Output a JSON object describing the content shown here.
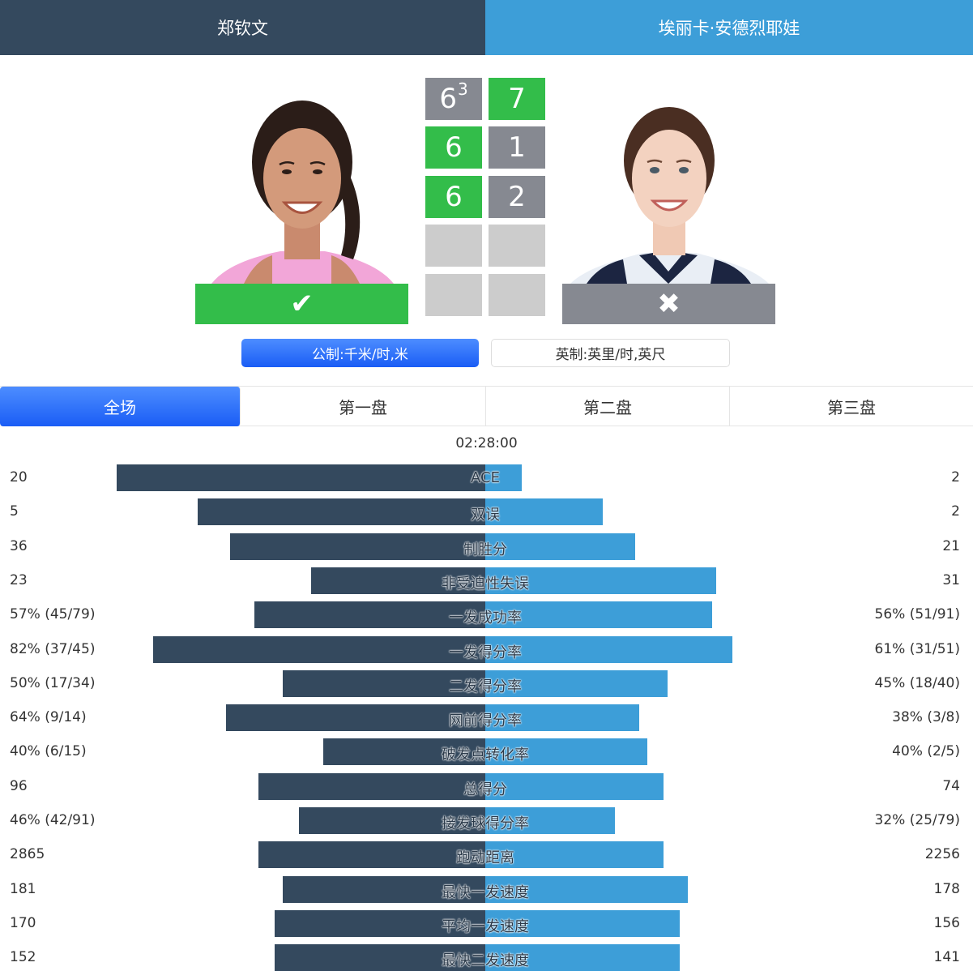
{
  "players": {
    "p1": {
      "name": "郑钦文",
      "result": "✔",
      "result_icon": "check-icon"
    },
    "p2": {
      "name": "埃丽卡·安德烈耶娃",
      "result": "✖",
      "result_icon": "cross-icon"
    }
  },
  "colors": {
    "p1": "#34495e",
    "p2": "#3d9ed8",
    "win": "#33bd4a",
    "lose": "#868991",
    "empty": "#cccccc",
    "accent": "#1a5df5"
  },
  "sets": [
    {
      "p1": "6",
      "p1_tiebreak": "3",
      "p2": "7",
      "winner": "p2"
    },
    {
      "p1": "6",
      "p2": "1",
      "winner": "p1"
    },
    {
      "p1": "6",
      "p2": "2",
      "winner": "p1"
    },
    {
      "p1": "",
      "p2": "",
      "winner": ""
    },
    {
      "p1": "",
      "p2": "",
      "winner": ""
    }
  ],
  "units": {
    "metric": "公制:千米/时,米",
    "imperial": "英制:英里/时,英尺",
    "selected": "metric"
  },
  "tabs": [
    {
      "label": "全场",
      "active": true
    },
    {
      "label": "第一盘",
      "active": false
    },
    {
      "label": "第二盘",
      "active": false
    },
    {
      "label": "第三盘",
      "active": false
    }
  ],
  "duration": "02:28:00",
  "stats": [
    {
      "label": "ACE",
      "p1": "20",
      "p2": "2",
      "p1_share": 0.91,
      "p2_share": 0.09
    },
    {
      "label": "双误",
      "p1": "5",
      "p2": "2",
      "p1_share": 0.71,
      "p2_share": 0.29
    },
    {
      "label": "制胜分",
      "p1": "36",
      "p2": "21",
      "p1_share": 0.63,
      "p2_share": 0.37
    },
    {
      "label": "非受迫性失误",
      "p1": "23",
      "p2": "31",
      "p1_share": 0.43,
      "p2_share": 0.57
    },
    {
      "label": "一发成功率",
      "p1": "57% (45/79)",
      "p2": "56% (51/91)",
      "p1_share": 0.57,
      "p2_share": 0.56
    },
    {
      "label": "一发得分率",
      "p1": "82% (37/45)",
      "p2": "61% (31/51)",
      "p1_share": 0.82,
      "p2_share": 0.61
    },
    {
      "label": "二发得分率",
      "p1": "50% (17/34)",
      "p2": "45% (18/40)",
      "p1_share": 0.5,
      "p2_share": 0.45
    },
    {
      "label": "网前得分率",
      "p1": "64% (9/14)",
      "p2": "38% (3/8)",
      "p1_share": 0.64,
      "p2_share": 0.38
    },
    {
      "label": "破发点转化率",
      "p1": "40% (6/15)",
      "p2": "40% (2/5)",
      "p1_share": 0.4,
      "p2_share": 0.4
    },
    {
      "label": "总得分",
      "p1": "96",
      "p2": "74",
      "p1_share": 0.56,
      "p2_share": 0.44
    },
    {
      "label": "接发球得分率",
      "p1": "46% (42/91)",
      "p2": "32% (25/79)",
      "p1_share": 0.46,
      "p2_share": 0.32
    },
    {
      "label": "跑动距离",
      "p1": "2865",
      "p2": "2256",
      "p1_share": 0.56,
      "p2_share": 0.44
    },
    {
      "label": "最快一发速度",
      "p1": "181",
      "p2": "178",
      "p1_share": 0.5,
      "p2_share": 0.5
    },
    {
      "label": "平均一发速度",
      "p1": "170",
      "p2": "156",
      "p1_share": 0.52,
      "p2_share": 0.48
    },
    {
      "label": "最快二发速度",
      "p1": "152",
      "p2": "141",
      "p1_share": 0.52,
      "p2_share": 0.48
    }
  ]
}
